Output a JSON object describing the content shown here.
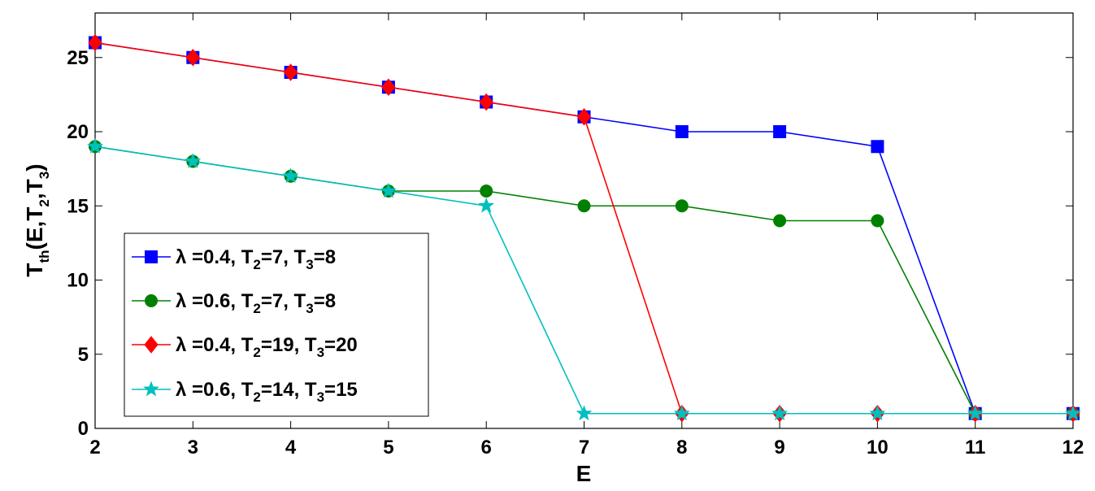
{
  "chart_data": {
    "type": "line",
    "xlabel": "E",
    "ylabel": "T_th(E,T_2,T_3)",
    "xlim": [
      2,
      12
    ],
    "ylim": [
      0,
      28
    ],
    "xticks": [
      2,
      3,
      4,
      5,
      6,
      7,
      8,
      9,
      10,
      11,
      12
    ],
    "yticks": [
      0,
      5,
      10,
      15,
      20,
      25
    ],
    "grid": false,
    "legend_position": "bottom-left",
    "x": [
      2,
      3,
      4,
      5,
      6,
      7,
      8,
      9,
      10,
      11,
      12
    ],
    "series": [
      {
        "name": "λ =0.4, T2=7, T3=8",
        "lambda": "λ =0.4, T",
        "t2": "=7,  T",
        "t3": "=8",
        "color": "#0000ff",
        "marker": "square",
        "values": [
          26,
          25,
          24,
          23,
          22,
          21,
          20,
          20,
          19,
          1,
          1
        ]
      },
      {
        "name": "λ =0.6, T2=7, T3=8",
        "lambda": "λ =0.6, T",
        "t2": "=7,  T",
        "t3": "=8",
        "color": "#008000",
        "marker": "circle",
        "values": [
          19,
          18,
          17,
          16,
          16,
          15,
          15,
          14,
          14,
          1,
          1
        ]
      },
      {
        "name": "λ =0.4, T2=19, T3=20",
        "lambda": "λ =0.4, T",
        "t2": "=19, T",
        "t3": "=20",
        "color": "#ff0000",
        "marker": "diamond",
        "values": [
          26,
          25,
          24,
          23,
          22,
          21,
          1,
          1,
          1,
          1,
          1
        ]
      },
      {
        "name": "λ =0.6, T2=14, T3=15",
        "lambda": "λ =0.6, T",
        "t2": "=14, T",
        "t3": "=15",
        "color": "#00bfbf",
        "marker": "star",
        "values": [
          19,
          18,
          17,
          16,
          15,
          1,
          1,
          1,
          1,
          1,
          1
        ]
      }
    ]
  }
}
